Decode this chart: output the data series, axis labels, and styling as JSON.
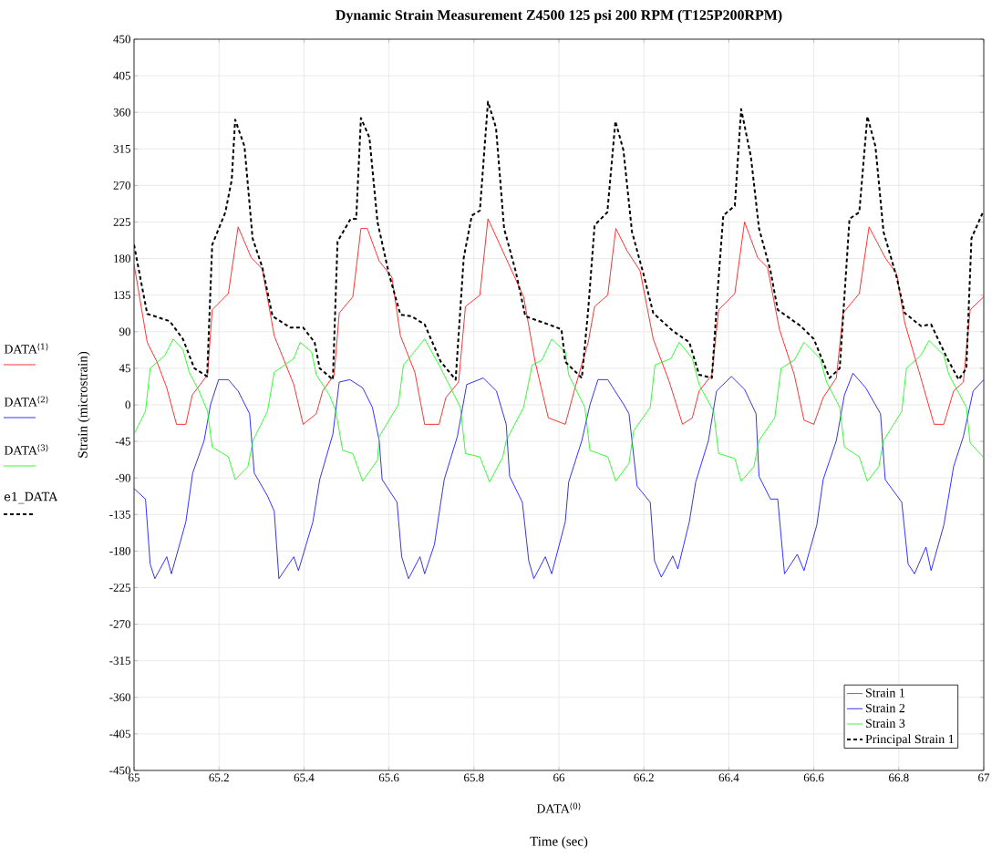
{
  "chart_data": {
    "type": "line",
    "title": "Dynamic Strain Measurement Z4500 125 psi 200 RPM (T125P200RPM)",
    "xlabel": "Time (sec)",
    "ylabel": "Strain (microstrain)",
    "annotations": [
      "DATA$^{⟨1⟩}$",
      "DATA$^{⟨2⟩}$",
      "DATA$^{⟨3⟩}$",
      "e1_DATA",
      "DATA$^{⟨0⟩}$"
    ],
    "xlim": [
      65,
      67
    ],
    "ylim": [
      -450,
      450
    ],
    "xticks": [
      65,
      65.2,
      65.4,
      65.6,
      65.8,
      66,
      66.2,
      66.4,
      66.6,
      66.8,
      67
    ],
    "yticks": [
      -450,
      -405,
      -360,
      -315,
      -270,
      -225,
      -180,
      -135,
      -90,
      -45,
      0,
      45,
      90,
      135,
      180,
      225,
      270,
      315,
      360,
      405,
      450
    ],
    "grid": true,
    "legend": "bottom right",
    "marker": "none",
    "series": [
      {
        "name": "Strain 1",
        "color": "#ff0000",
        "line_style": "solid",
        "x": [
          65.0,
          65.031,
          65.054,
          65.077,
          65.1,
          65.122,
          65.137,
          65.173,
          65.184,
          65.222,
          65.245,
          65.276,
          65.302,
          65.33,
          65.376,
          65.398,
          65.429,
          65.444,
          65.471,
          65.483,
          65.515,
          65.534,
          65.549,
          65.577,
          65.607,
          65.627,
          65.661,
          65.684,
          65.718,
          65.734,
          65.764,
          65.78,
          65.814,
          65.833,
          65.875,
          65.917,
          65.944,
          65.975,
          66.015,
          66.038,
          66.069,
          66.084,
          66.115,
          66.134,
          66.161,
          66.191,
          66.222,
          66.26,
          66.291,
          66.314,
          66.33,
          66.36,
          66.376,
          66.414,
          66.437,
          66.468,
          66.491,
          66.519,
          66.554,
          66.577,
          66.6,
          66.622,
          66.653,
          66.669,
          66.707,
          66.73,
          66.768,
          66.795,
          66.814,
          66.852,
          66.883,
          66.906,
          66.929,
          66.952,
          66.968,
          67.0
        ],
        "values": [
          173,
          77,
          53,
          21,
          -24,
          -24,
          12,
          37,
          117,
          137,
          219,
          181,
          167,
          85,
          25,
          -24,
          -11,
          17,
          37,
          113,
          133,
          217,
          217,
          177,
          157,
          85,
          40,
          -24,
          -24,
          9,
          28,
          121,
          135,
          229,
          181,
          133,
          53,
          -16,
          -24,
          21,
          77,
          121,
          135,
          217,
          189,
          165,
          81,
          28,
          -24,
          -16,
          17,
          37,
          117,
          137,
          225,
          181,
          169,
          93,
          37,
          -19,
          -24,
          9,
          33,
          113,
          137,
          219,
          181,
          161,
          101,
          33,
          -24,
          -24,
          17,
          28,
          117,
          133
        ]
      },
      {
        "name": "Strain 2",
        "color": "#0000ff",
        "line_style": "solid",
        "x": [
          65.0,
          65.027,
          65.038,
          65.049,
          65.077,
          65.088,
          65.122,
          65.138,
          65.165,
          65.18,
          65.199,
          65.222,
          65.245,
          65.272,
          65.283,
          65.314,
          65.33,
          65.341,
          65.376,
          65.387,
          65.421,
          65.437,
          65.468,
          65.483,
          65.508,
          65.538,
          65.561,
          65.577,
          65.584,
          65.619,
          65.63,
          65.646,
          65.673,
          65.684,
          65.707,
          65.73,
          65.761,
          65.783,
          65.822,
          65.853,
          65.876,
          65.884,
          65.914,
          65.929,
          65.941,
          65.968,
          65.983,
          66.015,
          66.023,
          66.054,
          66.073,
          66.092,
          66.115,
          66.153,
          66.165,
          66.184,
          66.215,
          66.225,
          66.241,
          66.268,
          66.28,
          66.307,
          66.322,
          66.352,
          66.371,
          66.406,
          66.437,
          66.464,
          66.471,
          66.498,
          66.515,
          66.531,
          66.561,
          66.577,
          66.607,
          66.622,
          66.653,
          66.672,
          66.692,
          66.722,
          66.757,
          66.768,
          66.807,
          66.822,
          66.837,
          66.864,
          66.876,
          66.906,
          66.929,
          66.952,
          66.975,
          67.0
        ],
        "values": [
          -103,
          -116,
          -196,
          -214,
          -187,
          -208,
          -144,
          -84,
          -44,
          0,
          31,
          31,
          17,
          -11,
          -84,
          -112,
          -131,
          -214,
          -187,
          -204,
          -144,
          -92,
          -36,
          28,
          31,
          21,
          -3,
          -44,
          -92,
          -120,
          -187,
          -214,
          -187,
          -208,
          -172,
          -92,
          -39,
          25,
          33,
          17,
          -24,
          -88,
          -120,
          -192,
          -214,
          -187,
          -208,
          -144,
          -95,
          -44,
          0,
          31,
          31,
          0,
          -11,
          -100,
          -120,
          -192,
          -212,
          -186,
          -202,
          -144,
          -95,
          -44,
          17,
          35,
          19,
          -11,
          -88,
          -116,
          -116,
          -208,
          -184,
          -204,
          -148,
          -92,
          -44,
          12,
          39,
          21,
          -11,
          -92,
          -120,
          -196,
          -208,
          -175,
          -204,
          -148,
          -76,
          -39,
          17,
          31
        ]
      },
      {
        "name": "Strain 3",
        "color": "#00ff00",
        "line_style": "solid",
        "x": [
          65.0,
          65.027,
          65.038,
          65.073,
          65.092,
          65.115,
          65.13,
          65.153,
          65.173,
          65.184,
          65.222,
          65.238,
          65.268,
          65.28,
          65.314,
          65.33,
          65.376,
          65.391,
          65.418,
          65.429,
          65.46,
          65.475,
          65.491,
          65.515,
          65.538,
          65.573,
          65.577,
          65.622,
          65.634,
          65.653,
          65.684,
          65.722,
          65.768,
          65.78,
          65.814,
          65.837,
          65.868,
          65.876,
          65.917,
          65.937,
          65.96,
          65.983,
          66.015,
          66.023,
          66.061,
          66.073,
          66.115,
          66.134,
          66.165,
          66.176,
          66.215,
          66.226,
          66.264,
          66.283,
          66.314,
          66.33,
          66.364,
          66.376,
          66.414,
          66.429,
          66.459,
          66.471,
          66.508,
          66.523,
          66.554,
          66.577,
          66.615,
          66.63,
          66.661,
          66.672,
          66.707,
          66.726,
          66.753,
          66.764,
          66.807,
          66.818,
          66.852,
          66.871,
          66.906,
          66.918,
          66.959,
          66.968,
          66.998
        ],
        "values": [
          -36,
          -8,
          45,
          61,
          81,
          68,
          40,
          17,
          -8,
          -52,
          -64,
          -92,
          -76,
          -44,
          -8,
          40,
          57,
          77,
          65,
          37,
          12,
          -8,
          -56,
          -60,
          -94,
          -68,
          -39,
          0,
          49,
          61,
          81,
          45,
          -3,
          -60,
          -64,
          -95,
          -64,
          -44,
          -3,
          49,
          55,
          81,
          65,
          37,
          -3,
          -56,
          -64,
          -94,
          -72,
          -32,
          -3,
          49,
          57,
          77,
          57,
          25,
          -8,
          -60,
          -66,
          -94,
          -76,
          -44,
          -16,
          45,
          55,
          77,
          57,
          28,
          -3,
          -52,
          -64,
          -94,
          -76,
          -44,
          -8,
          45,
          61,
          79,
          61,
          37,
          -3,
          -47,
          -64
        ]
      },
      {
        "name": "Principal Strain 1",
        "color": "#000000",
        "line_style": "dashed",
        "x": [
          65.0,
          65.031,
          65.084,
          65.115,
          65.142,
          65.172,
          65.184,
          65.215,
          65.23,
          65.238,
          65.26,
          65.279,
          65.302,
          65.326,
          65.368,
          65.398,
          65.425,
          65.437,
          65.468,
          65.479,
          65.51,
          65.523,
          65.534,
          65.554,
          65.573,
          65.6,
          65.627,
          65.653,
          65.684,
          65.722,
          65.757,
          65.776,
          65.795,
          65.814,
          65.833,
          65.852,
          65.871,
          65.898,
          65.921,
          65.975,
          66.006,
          66.015,
          66.054,
          66.069,
          66.084,
          66.114,
          66.133,
          66.152,
          66.172,
          66.199,
          66.222,
          66.268,
          66.307,
          66.33,
          66.36,
          66.376,
          66.387,
          66.414,
          66.429,
          66.452,
          66.471,
          66.498,
          66.515,
          66.569,
          66.6,
          66.637,
          66.661,
          66.684,
          66.707,
          66.726,
          66.745,
          66.764,
          66.795,
          66.814,
          66.852,
          66.876,
          66.914,
          66.941,
          66.959,
          66.971,
          66.998
        ],
        "values": [
          197,
          112,
          103,
          81,
          45,
          35,
          197,
          237,
          277,
          351,
          318,
          205,
          169,
          109,
          95,
          95,
          77,
          45,
          31,
          201,
          229,
          229,
          353,
          329,
          225,
          161,
          111,
          109,
          99,
          53,
          31,
          181,
          233,
          239,
          373,
          341,
          217,
          165,
          109,
          99,
          93,
          53,
          33,
          117,
          221,
          237,
          349,
          313,
          213,
          161,
          113,
          91,
          77,
          37,
          33,
          157,
          233,
          245,
          364,
          305,
          217,
          165,
          117,
          97,
          81,
          33,
          45,
          229,
          237,
          355,
          318,
          213,
          157,
          113,
          97,
          99,
          57,
          31,
          45,
          205,
          237
        ]
      }
    ]
  }
}
